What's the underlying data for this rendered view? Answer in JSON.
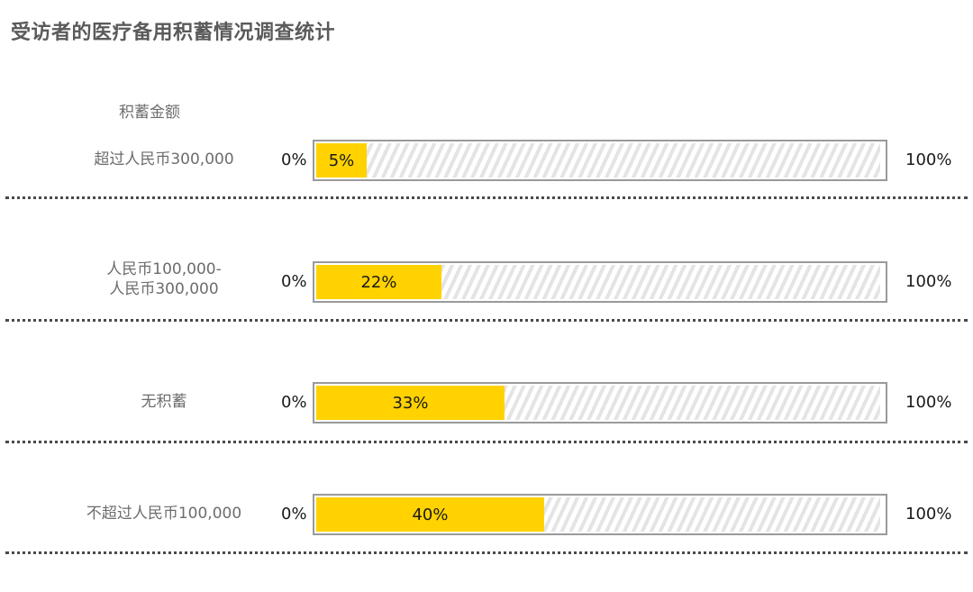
{
  "title": "受访者的医疗备用积蓄情况调查统计",
  "chart_data": {
    "type": "bar",
    "header": "积蓄金额",
    "scale_min_label": "0%",
    "scale_max_label": "100%",
    "categories": [
      [
        "超过人民币300,000"
      ],
      [
        "人民币100,000-",
        "人民币300,000"
      ],
      [
        "无积蓄"
      ],
      [
        "不超过人民币100,000"
      ]
    ],
    "values": [
      5,
      22,
      33,
      40
    ],
    "value_labels": [
      "5%",
      "22%",
      "33%",
      "40%"
    ],
    "ylim": [
      0,
      100
    ],
    "colors": {
      "fill": "#ffd200",
      "track_stripe": "#e4e4e4",
      "track_border": "#9a9a9a"
    }
  }
}
